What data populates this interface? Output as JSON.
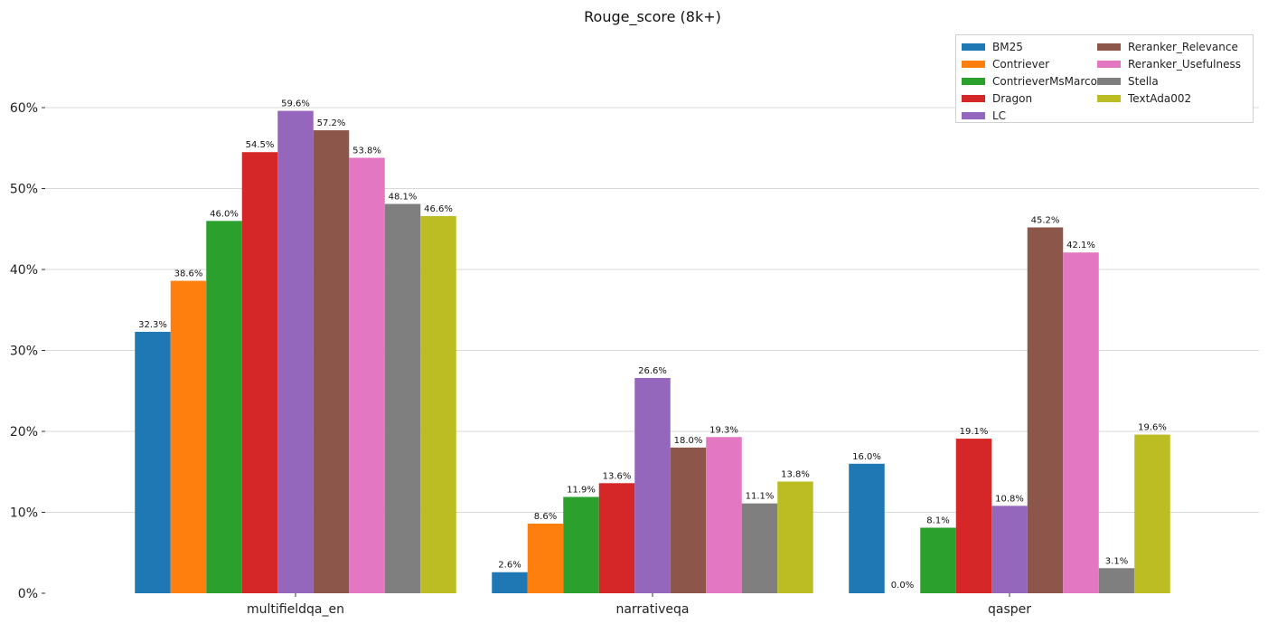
{
  "chart_data": {
    "type": "bar",
    "title": "Rouge_score (8k+)",
    "xlabel": "",
    "ylabel": "",
    "categories": [
      "multifieldqa_en",
      "narrativeqa",
      "qasper"
    ],
    "ylim": [
      0,
      70
    ],
    "yticks": [
      0,
      10,
      20,
      30,
      40,
      50,
      60
    ],
    "ytick_labels": [
      "0%",
      "10%",
      "20%",
      "30%",
      "40%",
      "50%",
      "60%"
    ],
    "grid": "horizontal",
    "legend_position": "top-right",
    "series": [
      {
        "name": "BM25",
        "color": "#1f77b4",
        "values": [
          32.3,
          2.6,
          16.0
        ],
        "labels": [
          "32.3%",
          "2.6%",
          "16.0%"
        ]
      },
      {
        "name": "Contriever",
        "color": "#ff7f0e",
        "values": [
          38.6,
          8.6,
          0.0
        ],
        "labels": [
          "38.6%",
          "8.6%",
          "0.0%"
        ]
      },
      {
        "name": "ContrieverMsMarco",
        "color": "#2ca02c",
        "values": [
          46.0,
          11.9,
          8.1
        ],
        "labels": [
          "46.0%",
          "11.9%",
          "8.1%"
        ]
      },
      {
        "name": "Dragon",
        "color": "#d62728",
        "values": [
          54.5,
          13.6,
          19.1
        ],
        "labels": [
          "54.5%",
          "13.6%",
          "19.1%"
        ]
      },
      {
        "name": "LC",
        "color": "#9467bd",
        "values": [
          59.6,
          26.6,
          10.8
        ],
        "labels": [
          "59.6%",
          "26.6%",
          "10.8%"
        ]
      },
      {
        "name": "Reranker_Relevance",
        "color": "#8c564b",
        "values": [
          57.2,
          18.0,
          45.2
        ],
        "labels": [
          "57.2%",
          "18.0%",
          "45.2%"
        ]
      },
      {
        "name": "Reranker_Usefulness",
        "color": "#e377c2",
        "values": [
          53.8,
          19.3,
          42.1
        ],
        "labels": [
          "53.8%",
          "19.3%",
          "42.1%"
        ]
      },
      {
        "name": "Stella",
        "color": "#7f7f7f",
        "values": [
          48.1,
          11.1,
          3.1
        ],
        "labels": [
          "48.1%",
          "11.1%",
          "3.1%"
        ]
      },
      {
        "name": "TextAda002",
        "color": "#bcbd22",
        "values": [
          46.6,
          13.8,
          19.6
        ],
        "labels": [
          "46.6%",
          "13.8%",
          "19.6%"
        ]
      }
    ]
  }
}
